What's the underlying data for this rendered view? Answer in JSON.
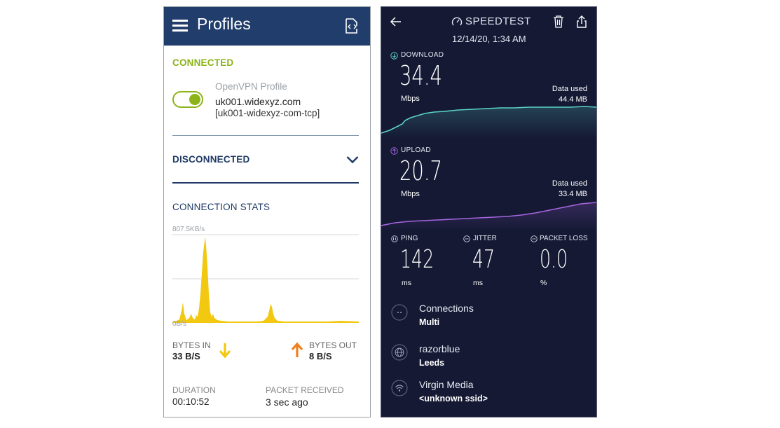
{
  "vpn": {
    "title": "Profiles",
    "sections": {
      "connected": "CONNECTED",
      "disconnected": "DISCONNECTED",
      "stats": "CONNECTION STATS"
    },
    "profile": {
      "type": "OpenVPN Profile",
      "host": "uk001.widexyz.com",
      "name": "[uk001-widexyz-com-tcp]",
      "enabled": true
    },
    "graph": {
      "max_label": "807.5KB/s",
      "min_label": "0B/s"
    },
    "stats": {
      "bytes_in_label": "BYTES IN",
      "bytes_in_value": "33 B/S",
      "bytes_out_label": "BYTES OUT",
      "bytes_out_value": "8 B/S",
      "duration_label": "DURATION",
      "duration_value": "00:10:52",
      "packet_label": "PACKET RECEIVED",
      "packet_value": "3 sec ago"
    },
    "colors": {
      "header": "#203d6c",
      "connected": "#8cb31a",
      "graph": "#f2c811",
      "arrow_in": "#f2c811",
      "arrow_out": "#f07f1e"
    },
    "icons": [
      "menu-icon",
      "import-profile-icon",
      "chevron-down-icon",
      "arrow-down-icon",
      "arrow-up-icon"
    ]
  },
  "speedtest": {
    "brand": "SPEEDTEST",
    "date": "12/14/20, 1:34 AM",
    "download": {
      "label": "DOWNLOAD",
      "value": "34.4",
      "unit": "Mbps",
      "used_label": "Data used",
      "used_value": "44.4 MB"
    },
    "upload": {
      "label": "UPLOAD",
      "value": "20.7",
      "unit": "Mbps",
      "used_label": "Data used",
      "used_value": "33.4 MB"
    },
    "ping": {
      "label": "PING",
      "value": "142",
      "unit": "ms"
    },
    "jitter": {
      "label": "JITTER",
      "value": "47",
      "unit": "ms"
    },
    "packet_loss": {
      "label": "PACKET LOSS",
      "value": "0.0",
      "unit": "%"
    },
    "connections": {
      "label": "Connections",
      "value": "Multi"
    },
    "server": {
      "label": "razorblue",
      "value": "Leeds"
    },
    "network": {
      "label": "Virgin Media",
      "value": "<unknown ssid>"
    },
    "colors": {
      "background": "#151934",
      "download": "#5ad3c6",
      "upload": "#a565e0"
    },
    "icons": [
      "back-icon",
      "speedtest-logo-icon",
      "trash-icon",
      "share-icon",
      "globe-icon",
      "wifi-icon"
    ]
  }
}
